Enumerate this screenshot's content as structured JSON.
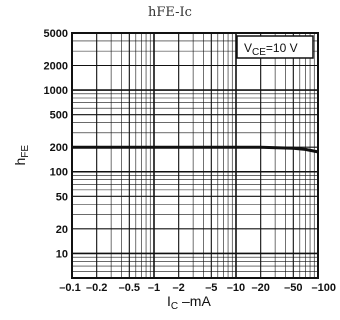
{
  "title": "hFE-Ic",
  "chart_data": {
    "type": "line",
    "title": "hFE-Ic",
    "xlabel": {
      "main": "I",
      "sub": "C",
      "rest": " –mA"
    },
    "ylabel": {
      "main": "h",
      "sub": "FE"
    },
    "x_scale": "log",
    "y_scale": "log",
    "xlim": [
      0.1,
      100
    ],
    "ylim": [
      5,
      5000
    ],
    "x_ticks": [
      0.1,
      0.2,
      0.5,
      1,
      2,
      5,
      10,
      20,
      50,
      100
    ],
    "x_tick_labels": [
      "–0.1",
      "–0.2",
      "–0.5",
      "–1",
      "–2",
      "–5",
      "–10",
      "–20",
      "–50",
      "–100"
    ],
    "y_ticks": [
      10,
      20,
      50,
      100,
      200,
      500,
      1000,
      2000,
      5000
    ],
    "y_tick_labels": [
      "10",
      "20",
      "50",
      "100",
      "200",
      "500",
      "1000",
      "2000",
      "5000"
    ],
    "grid": true,
    "annotation": {
      "main": "V",
      "sub": "CE",
      "rest": "=10 V"
    },
    "series": [
      {
        "x": [
          0.1,
          0.2,
          0.5,
          1,
          2,
          5,
          10,
          20,
          50,
          70,
          100
        ],
        "y": [
          200,
          200,
          200,
          200,
          200,
          200,
          200,
          199,
          194,
          188,
          175
        ]
      }
    ],
    "line_color": "#111111"
  }
}
